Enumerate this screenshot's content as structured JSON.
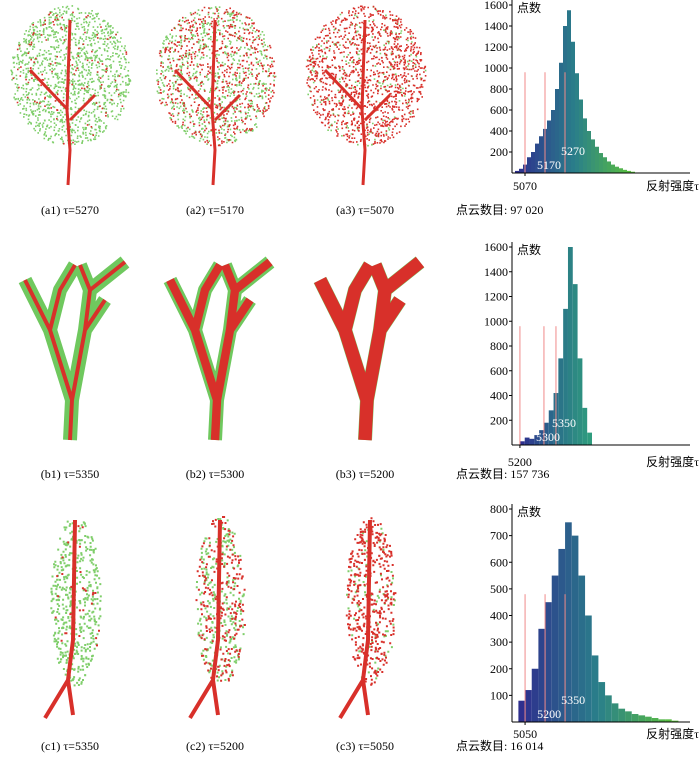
{
  "captions": [
    [
      "(a1) τ=5270",
      "(a2) τ=5170",
      "(a3) τ=5070"
    ],
    [
      "(b1) τ=5350",
      "(b2) τ=5300",
      "(b3) τ=5200"
    ],
    [
      "(c1) τ=5350",
      "(c2) τ=5200",
      "(c3) τ=5050"
    ]
  ],
  "count_labels": [
    "点云数目: 97 020",
    "点云数目: 157 736",
    "点云数目: 16 014"
  ],
  "chart_data": [
    {
      "type": "histogram",
      "y_label": "点数",
      "x_label": "反射强度τ",
      "colormap": [
        "#2e2f8e",
        "#2a7f8a",
        "#5cc23c"
      ],
      "threshold_color": "#f08a8a",
      "xlim": [
        5005,
        5895
      ],
      "xticks": [
        5070
      ],
      "ylim": [
        0,
        1600
      ],
      "yticks": [
        200,
        400,
        600,
        800,
        1000,
        1200,
        1400,
        1600
      ],
      "thresholds": [
        5070,
        5170,
        5270
      ],
      "annotations": [
        5270,
        5170
      ],
      "bins": [
        5020,
        5040,
        5060,
        5080,
        5100,
        5120,
        5140,
        5160,
        5180,
        5200,
        5220,
        5240,
        5260,
        5280,
        5300,
        5320,
        5340,
        5360,
        5380,
        5400,
        5420,
        5440,
        5460,
        5480,
        5500,
        5520,
        5540,
        5560,
        5580,
        5600,
        5620
      ],
      "values": [
        20,
        40,
        80,
        150,
        200,
        280,
        350,
        420,
        500,
        600,
        800,
        1050,
        1400,
        1550,
        1250,
        950,
        700,
        520,
        400,
        320,
        250,
        190,
        150,
        110,
        80,
        60,
        45,
        30,
        20,
        12
      ]
    },
    {
      "type": "histogram",
      "y_label": "点数",
      "x_label": "反射强度τ",
      "colormap": [
        "#2e2f8e",
        "#2a6f8a",
        "#2f9c7e"
      ],
      "threshold_color": "#f08a8a",
      "xlim": [
        5167,
        5908
      ],
      "xticks": [
        5200
      ],
      "ylim": [
        0,
        1600
      ],
      "yticks": [
        200,
        400,
        600,
        800,
        1000,
        1200,
        1400,
        1600
      ],
      "thresholds": [
        5200,
        5300,
        5350
      ],
      "annotations": [
        5350,
        5300
      ],
      "bins": [
        5200,
        5220,
        5240,
        5260,
        5280,
        5300,
        5320,
        5340,
        5360,
        5380,
        5400,
        5420,
        5440,
        5460,
        5480,
        5500
      ],
      "values": [
        30,
        60,
        50,
        80,
        120,
        180,
        280,
        420,
        700,
        1100,
        1600,
        1300,
        700,
        300,
        100
      ]
    },
    {
      "type": "histogram",
      "y_label": "点数",
      "x_label": "反射强度τ",
      "colormap": [
        "#2e2f8e",
        "#2a7f8a",
        "#5cc23c"
      ],
      "threshold_color": "#f08a8a",
      "xlim": [
        4952,
        6287
      ],
      "xticks": [
        5050
      ],
      "ylim": [
        0,
        800
      ],
      "yticks": [
        100,
        200,
        300,
        400,
        500,
        600,
        700,
        800
      ],
      "thresholds": [
        5050,
        5200,
        5350
      ],
      "annotations": [
        5350,
        5200
      ],
      "bins": [
        5000,
        5050,
        5100,
        5150,
        5200,
        5250,
        5300,
        5350,
        5400,
        5450,
        5500,
        5550,
        5600,
        5650,
        5700,
        5750,
        5800,
        5850,
        5900,
        5950,
        6000,
        6050,
        6100,
        6150,
        6200
      ],
      "values": [
        80,
        120,
        200,
        350,
        450,
        550,
        650,
        750,
        700,
        550,
        400,
        250,
        150,
        100,
        70,
        50,
        40,
        30,
        25,
        20,
        15,
        10,
        10,
        5
      ]
    }
  ]
}
